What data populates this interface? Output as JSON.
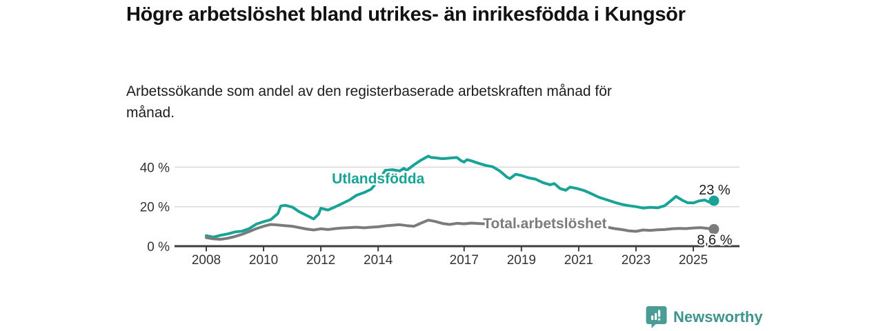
{
  "header": {
    "title": "Högre arbetslöshet bland utrikes- än inrikesfödda i Kungsör",
    "subtitle": "Arbetssökande som andel av den registerbaserade arbetskraften månad för månad."
  },
  "footer": {
    "brand": "Newsworthy"
  },
  "colors": {
    "teal": "#18A396",
    "gray": "#7B7B7B",
    "grid": "#D9D9D9",
    "axis": "#3C3C3C",
    "end_label_text": "#1a1a1a",
    "logo": "#3E938D",
    "logo_icon": "#4A9C95"
  },
  "chart_data": {
    "type": "line",
    "title": "Högre arbetslöshet bland utrikes- än inrikesfödda i Kungsör",
    "subtitle": "Arbetssökande som andel av den registerbaserade arbetskraften månad för månad.",
    "legend": "inline-labels",
    "grid": "horizontal",
    "x_axis": {
      "ticks": [
        2008,
        2010,
        2012,
        2014,
        2017,
        2019,
        2021,
        2023,
        2025
      ],
      "range": [
        2006.9,
        2026.6
      ]
    },
    "y_axis": {
      "ticks": [
        {
          "value": 0,
          "label": "0 %"
        },
        {
          "value": 20,
          "label": "20 %"
        },
        {
          "value": 40,
          "label": "40 %"
        }
      ],
      "gridlines": [
        20,
        40
      ],
      "range": [
        0,
        48
      ],
      "unit": "%"
    },
    "series": [
      {
        "id": "utlandsfodda",
        "name": "Utlandsfödda",
        "color": "#18A396",
        "end_label": "23 %",
        "end_label_position": "above",
        "label": {
          "anchor_year": 2014.0,
          "anchor_value": 31.8
        },
        "x": [
          2008,
          2008.25,
          2008.5,
          2008.75,
          2009,
          2009.25,
          2009.5,
          2009.75,
          2010,
          2010.25,
          2010.5,
          2010.6,
          2010.75,
          2011,
          2011.25,
          2011.5,
          2011.75,
          2011.92,
          2012,
          2012.25,
          2012.5,
          2012.75,
          2013,
          2013.25,
          2013.5,
          2013.75,
          2014,
          2014.25,
          2014.5,
          2014.75,
          2014.9,
          2015,
          2015.25,
          2015.5,
          2015.75,
          2015.85,
          2016,
          2016.25,
          2016.5,
          2016.75,
          2016.9,
          2017,
          2017.1,
          2017.25,
          2017.5,
          2017.75,
          2018,
          2018.25,
          2018.5,
          2018.6,
          2018.8,
          2019,
          2019.25,
          2019.5,
          2019.75,
          2020,
          2020.15,
          2020.35,
          2020.55,
          2020.7,
          2020.95,
          2021.2,
          2021.45,
          2021.7,
          2022,
          2022.25,
          2022.5,
          2022.75,
          2023,
          2023.25,
          2023.5,
          2023.75,
          2024,
          2024.2,
          2024.4,
          2024.6,
          2024.8,
          2025,
          2025.2,
          2025.4,
          2025.55,
          2025.72
        ],
        "values": [
          5.3,
          4.6,
          5.5,
          6.2,
          7.2,
          7.6,
          8.9,
          11.2,
          12.4,
          13.4,
          16.5,
          20.3,
          20.7,
          19.8,
          17.4,
          15.6,
          13.8,
          16.2,
          19.2,
          18.3,
          19.9,
          21.6,
          23.4,
          25.8,
          27.1,
          28.8,
          33,
          38.4,
          38.7,
          38.1,
          39.4,
          38.4,
          41.2,
          43.6,
          45.6,
          44.9,
          44.7,
          44.3,
          44.6,
          44.9,
          43.2,
          42.6,
          43.8,
          43.2,
          42,
          40.9,
          40.2,
          38,
          34.9,
          34.2,
          36.4,
          35.8,
          34.6,
          33.9,
          32.2,
          31.1,
          31.7,
          29.2,
          28.3,
          29.9,
          29.2,
          28.1,
          26.5,
          24.8,
          23.4,
          22.2,
          21.2,
          20.5,
          20,
          19.3,
          19.7,
          19.4,
          20.5,
          22.8,
          25.2,
          23.4,
          22,
          21.9,
          22.9,
          23.4,
          22.3,
          23
        ]
      },
      {
        "id": "total",
        "name": "Total arbetslöshet",
        "color": "#7B7B7B",
        "end_label": "8,6 %",
        "end_label_position": "below",
        "label": {
          "anchor_year": 2019.82,
          "anchor_value": 9.1
        },
        "x": [
          2008,
          2008.25,
          2008.5,
          2008.75,
          2009,
          2009.25,
          2009.5,
          2009.75,
          2010,
          2010.25,
          2010.5,
          2010.75,
          2011,
          2011.25,
          2011.5,
          2011.75,
          2012,
          2012.25,
          2012.5,
          2012.75,
          2013,
          2013.25,
          2013.5,
          2013.75,
          2014,
          2014.25,
          2014.5,
          2014.75,
          2015,
          2015.25,
          2015.5,
          2015.75,
          2016,
          2016.25,
          2016.5,
          2016.75,
          2017,
          2017.25,
          2017.5,
          2017.75,
          2018,
          2018.25,
          2018.5,
          2018.75,
          2019,
          2019.25,
          2019.5,
          2019.75,
          2020,
          2020.25,
          2020.5,
          2020.75,
          2021,
          2021.25,
          2021.5,
          2021.75,
          2022,
          2022.25,
          2022.5,
          2022.75,
          2023,
          2023.25,
          2023.5,
          2023.75,
          2024,
          2024.25,
          2024.5,
          2024.75,
          2025,
          2025.25,
          2025.5,
          2025.72
        ],
        "values": [
          4.3,
          3.7,
          3.5,
          4,
          4.9,
          6,
          7.4,
          8.9,
          10.1,
          11,
          10.7,
          10.4,
          10.1,
          9.4,
          8.7,
          8.2,
          8.8,
          8.4,
          8.9,
          9.2,
          9.4,
          9.6,
          9.3,
          9.6,
          9.8,
          10.3,
          10.6,
          10.9,
          10.4,
          10.1,
          11.7,
          13.2,
          12.5,
          11.5,
          11,
          11.6,
          11.3,
          11.7,
          11.5,
          11.3,
          11.1,
          10.8,
          10.5,
          10.3,
          10.1,
          9.9,
          9.7,
          9.6,
          9.7,
          10.3,
          10.5,
          10.2,
          10,
          9.8,
          9.7,
          9.8,
          9.6,
          8.9,
          8.4,
          7.8,
          7.5,
          8.2,
          8,
          8.3,
          8.4,
          8.8,
          9,
          8.9,
          9.2,
          9.4,
          9,
          8.6
        ]
      }
    ]
  }
}
